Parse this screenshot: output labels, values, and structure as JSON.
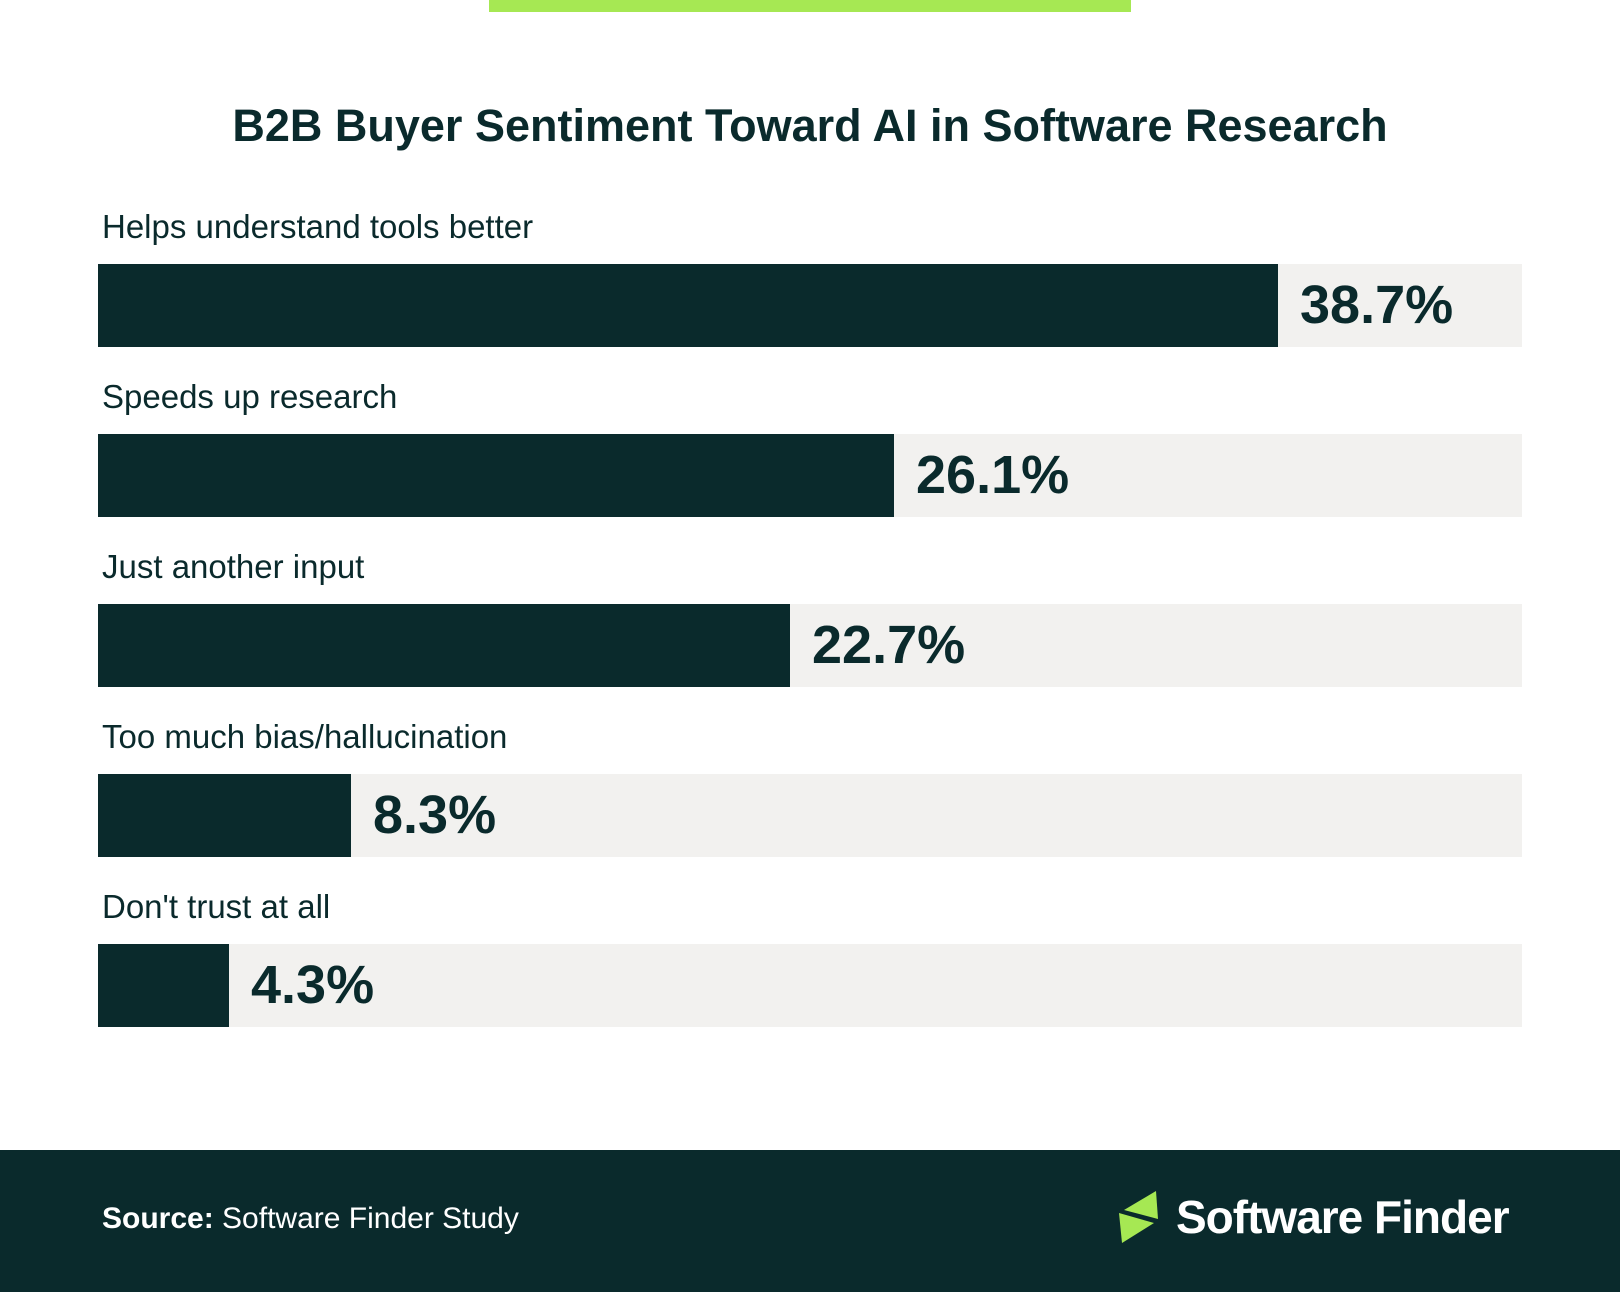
{
  "accent_color": "#a6e853",
  "bar_color": "#0a2a2c",
  "track_color": "#f2f1ef",
  "chart_data": {
    "type": "bar",
    "orientation": "horizontal",
    "title": "B2B Buyer Sentiment Toward AI in Software Research",
    "categories": [
      "Helps understand tools better",
      "Speeds up research",
      "Just another input",
      "Too much bias/hallucination",
      "Don't trust at all"
    ],
    "values": [
      38.7,
      26.1,
      22.7,
      8.3,
      4.3
    ],
    "value_labels": [
      "38.7%",
      "26.1%",
      "22.7%",
      "8.3%",
      "4.3%"
    ],
    "unit": "%",
    "xlim": [
      0,
      46.7
    ],
    "grid": false
  },
  "footer": {
    "source_label": "Source:",
    "source_text": "Software Finder Study",
    "logo_text": "Software Finder"
  }
}
